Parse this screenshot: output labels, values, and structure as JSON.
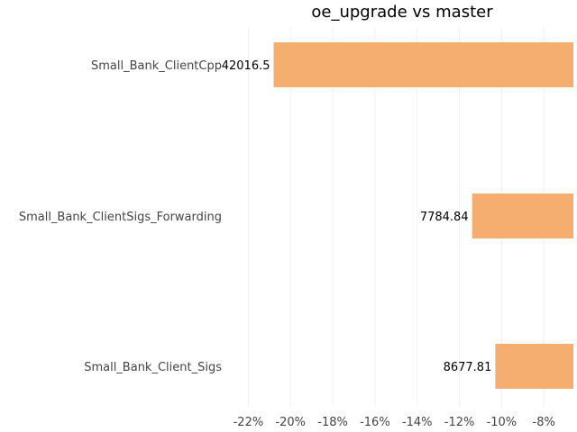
{
  "chart_data": {
    "type": "bar",
    "orientation": "horizontal",
    "title": "oe_upgrade vs master",
    "xlabel": "",
    "ylabel": "",
    "categories": [
      "Small_Bank_ClientCpp",
      "Small_Bank_ClientSigs_Forwarding",
      "Small_Bank_Client_Sigs"
    ],
    "values": [
      -20.8,
      -11.4,
      -10.3
    ],
    "data_labels": [
      "42016.5",
      "7784.84",
      "8677.81"
    ],
    "xlim": [
      -23,
      -6.6
    ],
    "x_ticks": [
      -22,
      -20,
      -18,
      -16,
      -14,
      -12,
      -10,
      -8
    ],
    "x_tick_labels": [
      "-22%",
      "-20%",
      "-18%",
      "-16%",
      "-14%",
      "-12%",
      "-10%",
      "-8%"
    ],
    "grid": true,
    "bar_color": "#f5ae6f"
  }
}
